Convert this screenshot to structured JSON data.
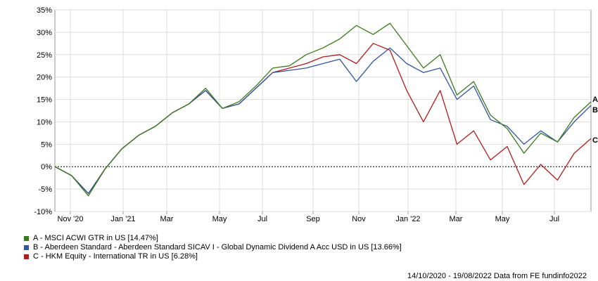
{
  "chart_data": {
    "type": "line",
    "x_tick_labels": [
      "Nov '20",
      "Jan '21",
      "Mar",
      "May",
      "Jul",
      "Sep",
      "Nov",
      "Jan '22",
      "Mar",
      "May",
      "Jul"
    ],
    "y_tick_labels": [
      "35%",
      "30%",
      "25%",
      "20%",
      "15%",
      "10%",
      "5%",
      "0%",
      "-5%",
      "-10%"
    ],
    "ylim": [
      -10,
      35
    ],
    "y_unit": "%",
    "grid": true,
    "zero_line": "dashed",
    "legend_placement": "bottom-left",
    "series": [
      {
        "key": "A",
        "name": "A - MSCI ACWI GTR in US [14.47%]",
        "color": "#3a7a1c",
        "values": [
          0,
          -2.0,
          -6.5,
          -0.5,
          4.0,
          7.0,
          9.0,
          12.0,
          14.0,
          17.5,
          13.0,
          14.5,
          18.0,
          22.0,
          22.5,
          25.0,
          26.5,
          28.5,
          31.5,
          29.5,
          32.0,
          27.0,
          22.0,
          25.0,
          16.0,
          19.0,
          11.5,
          8.5,
          3.0,
          7.5,
          5.5,
          11.0,
          14.47
        ]
      },
      {
        "key": "B",
        "name": "B - Aberdeen Standard - Aberdeen Standard SICAV I - Global Dynamic Dividend A Acc USD in US [13.66%]",
        "color": "#2f55a4",
        "values": [
          0,
          -2.0,
          -6.0,
          -0.5,
          4.0,
          7.0,
          9.0,
          12.0,
          14.0,
          17.0,
          13.0,
          14.0,
          17.5,
          21.0,
          21.5,
          22.0,
          23.0,
          24.0,
          19.0,
          23.5,
          26.5,
          23.0,
          21.0,
          22.0,
          15.0,
          18.0,
          10.5,
          9.0,
          5.0,
          8.0,
          5.5,
          10.0,
          13.66
        ]
      },
      {
        "key": "C",
        "name": "C - HKM Equity - International TR in US [6.28%]",
        "color": "#b31b1b",
        "values": [
          0,
          -2.0,
          -6.0,
          -0.5,
          4.0,
          7.0,
          9.0,
          12.0,
          14.0,
          17.0,
          13.0,
          14.0,
          17.5,
          21.0,
          22.0,
          23.0,
          24.5,
          25.0,
          23.0,
          27.5,
          26.0,
          17.0,
          10.0,
          17.0,
          5.0,
          8.0,
          1.5,
          4.5,
          -4.0,
          0.5,
          -3.0,
          3.0,
          6.28
        ]
      }
    ]
  },
  "footer_text": "14/10/2020 - 19/08/2022 Data from FE fundinfo2022"
}
